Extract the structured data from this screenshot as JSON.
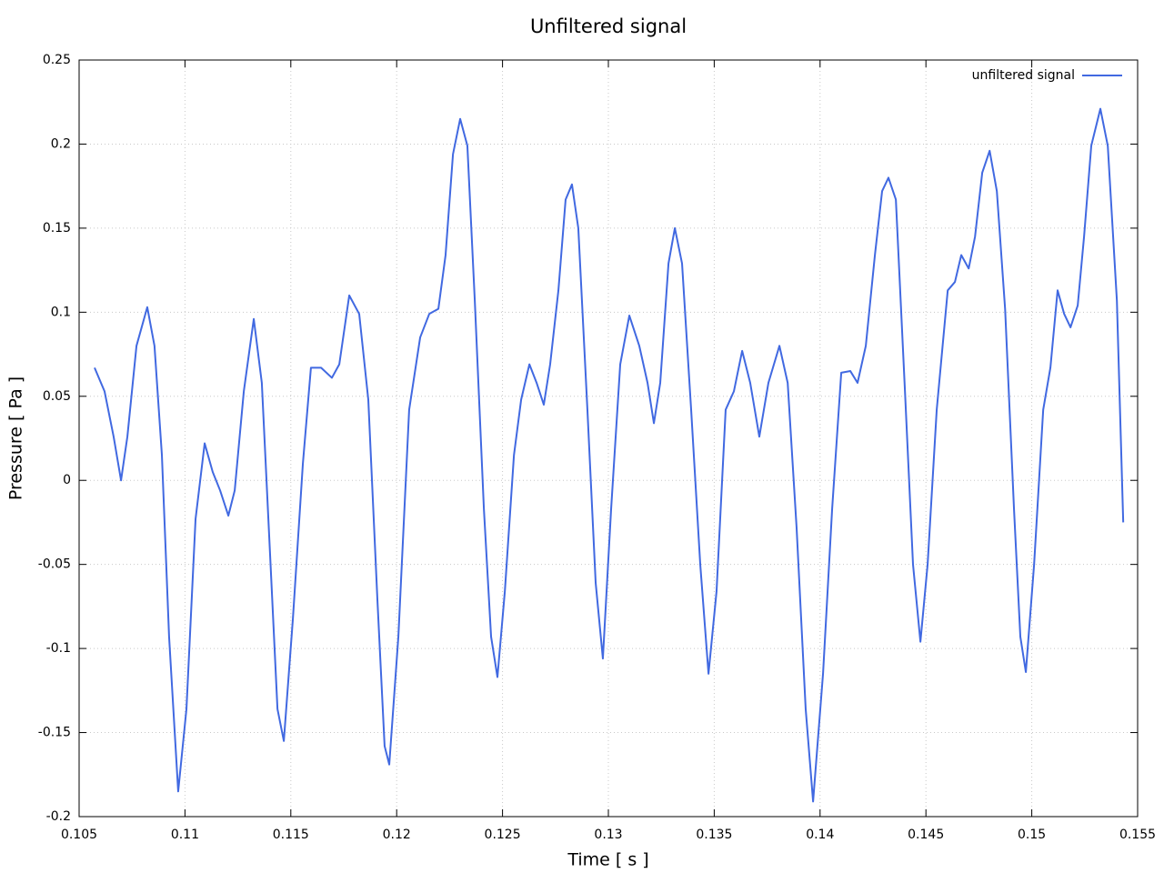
{
  "chart_data": {
    "type": "line",
    "title": "Unfiltered signal",
    "xlabel": "Time [ s ]",
    "ylabel": "Pressure [ Pa ]",
    "xlim": [
      0.105,
      0.155
    ],
    "ylim": [
      -0.2,
      0.25
    ],
    "xticks": [
      0.105,
      0.11,
      0.115,
      0.12,
      0.125,
      0.13,
      0.135,
      0.14,
      0.145,
      0.15,
      0.155
    ],
    "yticks": [
      -0.2,
      -0.15,
      -0.1,
      -0.05,
      0,
      0.05,
      0.1,
      0.15,
      0.2,
      0.25
    ],
    "grid": true,
    "legend": "upper right",
    "x": [
      0.10573,
      0.1062,
      0.10663,
      0.10698,
      0.10728,
      0.10771,
      0.10822,
      0.10856,
      0.10891,
      0.10925,
      0.10968,
      0.11007,
      0.1105,
      0.11093,
      0.11131,
      0.11166,
      0.11205,
      0.11235,
      0.11278,
      0.11325,
      0.11363,
      0.11402,
      0.11437,
      0.11467,
      0.1151,
      0.11557,
      0.11595,
      0.11643,
      0.11694,
      0.11729,
      0.11776,
      0.11823,
      0.11866,
      0.11909,
      0.11943,
      0.11965,
      0.12008,
      0.12059,
      0.12111,
      0.12154,
      0.12197,
      0.12231,
      0.12266,
      0.123,
      0.12334,
      0.12369,
      0.12412,
      0.12446,
      0.12476,
      0.12511,
      0.12554,
      0.12588,
      0.12627,
      0.12661,
      0.12695,
      0.12725,
      0.12764,
      0.12798,
      0.12828,
      0.12858,
      0.12901,
      0.1294,
      0.12974,
      0.13013,
      0.13056,
      0.13099,
      0.13146,
      0.13185,
      0.13215,
      0.13245,
      0.13284,
      0.13314,
      0.13348,
      0.13391,
      0.13434,
      0.13473,
      0.13511,
      0.13554,
      0.13593,
      0.13632,
      0.1367,
      0.13713,
      0.13756,
      0.13808,
      0.13847,
      0.13889,
      0.13932,
      0.13967,
      0.14014,
      0.14057,
      0.141,
      0.14143,
      0.14177,
      0.14216,
      0.14259,
      0.14293,
      0.14323,
      0.14358,
      0.14401,
      0.14439,
      0.14474,
      0.14508,
      0.14551,
      0.14603,
      0.14637,
      0.14667,
      0.14702,
      0.14732,
      0.14766,
      0.14801,
      0.14835,
      0.14874,
      0.14916,
      0.14946,
      0.14972,
      0.15011,
      0.15054,
      0.15088,
      0.15122,
      0.15153,
      0.15183,
      0.15217,
      0.15247,
      0.15281,
      0.15324,
      0.15359,
      0.15402,
      0.15432
    ],
    "series": [
      {
        "name": "unfiltered signal",
        "color": "#4169e1",
        "values": [
          0.067,
          0.053,
          0.026,
          0.0,
          0.026,
          0.08,
          0.103,
          0.08,
          0.015,
          -0.093,
          -0.185,
          -0.136,
          -0.023,
          0.022,
          0.005,
          -0.006,
          -0.021,
          -0.006,
          0.053,
          0.096,
          0.058,
          -0.044,
          -0.136,
          -0.155,
          -0.082,
          0.01,
          0.067,
          0.067,
          0.061,
          0.069,
          0.11,
          0.099,
          0.048,
          -0.071,
          -0.158,
          -0.169,
          -0.093,
          0.042,
          0.085,
          0.099,
          0.102,
          0.134,
          0.194,
          0.215,
          0.199,
          0.107,
          -0.017,
          -0.093,
          -0.117,
          -0.066,
          0.015,
          0.048,
          0.069,
          0.058,
          0.045,
          0.069,
          0.113,
          0.167,
          0.176,
          0.15,
          0.042,
          -0.061,
          -0.106,
          -0.017,
          0.069,
          0.098,
          0.08,
          0.058,
          0.034,
          0.058,
          0.129,
          0.15,
          0.129,
          0.042,
          -0.05,
          -0.115,
          -0.066,
          0.042,
          0.053,
          0.077,
          0.058,
          0.026,
          0.058,
          0.08,
          0.058,
          -0.028,
          -0.136,
          -0.191,
          -0.115,
          -0.017,
          0.064,
          0.065,
          0.058,
          0.08,
          0.134,
          0.172,
          0.18,
          0.167,
          0.053,
          -0.05,
          -0.096,
          -0.05,
          0.042,
          0.113,
          0.118,
          0.134,
          0.126,
          0.145,
          0.183,
          0.196,
          0.172,
          0.102,
          -0.017,
          -0.093,
          -0.114,
          -0.05,
          0.042,
          0.067,
          0.113,
          0.099,
          0.091,
          0.104,
          0.145,
          0.199,
          0.221,
          0.199,
          0.107,
          -0.025
        ]
      }
    ]
  }
}
